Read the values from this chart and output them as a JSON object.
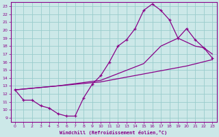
{
  "xlabel": "Windchill (Refroidissement éolien,°C)",
  "xlim": [
    -0.5,
    23.5
  ],
  "ylim": [
    8.5,
    23.5
  ],
  "xticks": [
    0,
    1,
    2,
    3,
    4,
    5,
    6,
    7,
    8,
    9,
    10,
    11,
    12,
    13,
    14,
    15,
    16,
    17,
    18,
    19,
    20,
    21,
    22,
    23
  ],
  "yticks": [
    9,
    10,
    11,
    12,
    13,
    14,
    15,
    16,
    17,
    18,
    19,
    20,
    21,
    22,
    23
  ],
  "bg_color": "#cce8e8",
  "grid_color": "#99cccc",
  "line_color": "#880088",
  "curve1_x": [
    0,
    1,
    2,
    3,
    4,
    5,
    6,
    7,
    8,
    9,
    10,
    11,
    12,
    13,
    14,
    15,
    16,
    17,
    18,
    19,
    20,
    21,
    22,
    23
  ],
  "curve1_y": [
    12.5,
    11.2,
    11.2,
    10.5,
    10.2,
    9.5,
    9.2,
    9.2,
    11.5,
    13.2,
    14.3,
    16.0,
    18.0,
    18.8,
    20.2,
    22.5,
    23.3,
    22.5,
    21.3,
    19.0,
    20.2,
    18.8,
    17.8,
    16.5
  ],
  "curve2_x": [
    0,
    5,
    10,
    15,
    20,
    23
  ],
  "curve2_y": [
    12.5,
    13.0,
    13.5,
    14.5,
    15.5,
    16.3
  ],
  "curve3_x": [
    0,
    5,
    10,
    15,
    17,
    19,
    21,
    22,
    23
  ],
  "curve3_y": [
    12.5,
    13.0,
    13.7,
    15.8,
    18.0,
    19.0,
    18.0,
    17.8,
    17.0
  ]
}
